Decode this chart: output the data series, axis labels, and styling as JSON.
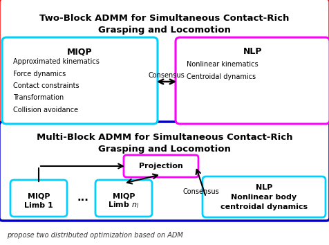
{
  "title_top": "Two-Block ADMM for Simultaneous Contact-Rich\nGrasping and Locomotion",
  "title_bottom": "Multi-Block ADMM for Simultaneous Contact-Rich\nGrasping and Locomotion",
  "miqp_title": "MIQP",
  "miqp_lines": [
    "Approximated kinematics",
    "Force dynamics",
    "Contact constraints",
    "Transformation",
    "Collision avoidance"
  ],
  "nlp_title": "NLP",
  "nlp_lines": [
    "Nonlinear kinematics",
    "Centroidal dynamics"
  ],
  "consensus_label": "Consensus",
  "projection_label": "Projection",
  "miqp1_line1": "MIQP",
  "miqp1_line2": "Limb 1",
  "miqpn_line1": "MIQP",
  "miqpn_line2": "Limb $n_l$",
  "nlp2_line1": "NLP",
  "nlp2_line2": "Nonlinear body",
  "nlp2_line3": "centroidal dynamics",
  "dots_label": "...",
  "consensus2_label": "Consensus",
  "outer_red_color": "#FF0000",
  "outer_blue_color": "#0000CD",
  "cyan_box_color": "#00CFFF",
  "magenta_box_color": "#FF00FF",
  "background_color": "#FFFFFF",
  "text_color": "#000000",
  "footer_text": "propose two distributed optimization based on ADM"
}
